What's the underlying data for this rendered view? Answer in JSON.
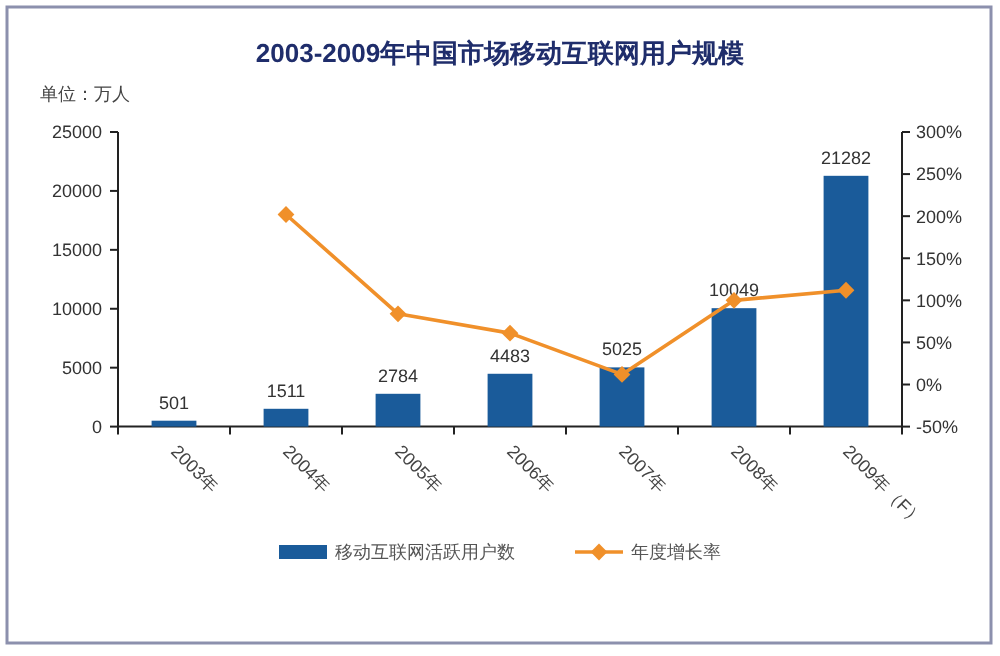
{
  "chart_data": {
    "type": "bar",
    "title": "2003-2009年中国市场移动互联网用户规模",
    "ylabel": "单位：万人",
    "categories": [
      "2003年",
      "2004年",
      "2005年",
      "2006年",
      "2007年",
      "2008年",
      "2009年（F）"
    ],
    "series": [
      {
        "name": "移动互联网活跃用户数",
        "color": "#1a5b9a",
        "values": [
          501,
          1511,
          2784,
          4483,
          5025,
          10049,
          21282
        ],
        "value_labels": [
          "501",
          "1511",
          "2784",
          "4483",
          "5025",
          "10049",
          "21282"
        ]
      },
      {
        "name": "年度增长率",
        "type": "line",
        "axis": "y2",
        "color": "#f0902a",
        "values": [
          null,
          202,
          84,
          61,
          12,
          100,
          112
        ]
      }
    ],
    "ylim": [
      0,
      25000
    ],
    "yticks": [
      0,
      5000,
      10000,
      15000,
      20000,
      25000
    ],
    "y2lim": [
      -50,
      300
    ],
    "y2ticks": [
      {
        "value": -50,
        "label": "-50%"
      },
      {
        "value": 0,
        "label": "0%"
      },
      {
        "value": 50,
        "label": "50%"
      },
      {
        "value": 100,
        "label": "100%"
      },
      {
        "value": 150,
        "label": "150%"
      },
      {
        "value": 200,
        "label": "200%"
      },
      {
        "value": 250,
        "label": "250%"
      },
      {
        "value": 300,
        "label": "300%"
      }
    ],
    "legend": "bottom",
    "marker": "diamond"
  }
}
